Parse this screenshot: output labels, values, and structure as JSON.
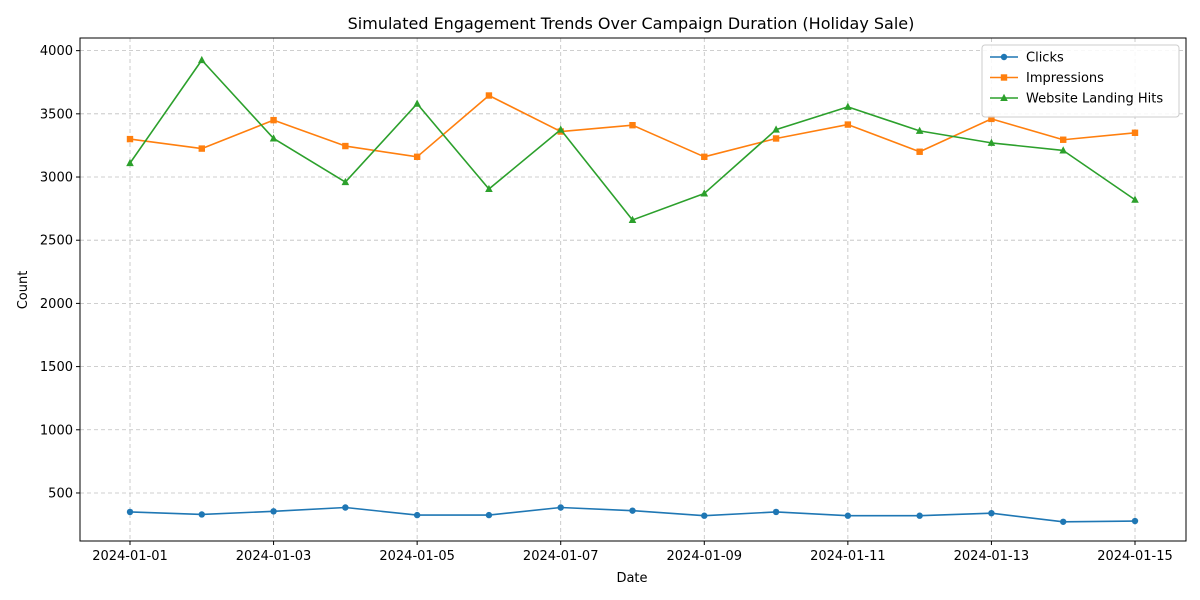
{
  "chart_data": {
    "type": "line",
    "title": "Simulated Engagement Trends Over Campaign Duration (Holiday Sale)",
    "xlabel": "Date",
    "ylabel": "Count",
    "x": [
      "2024-01-01",
      "2024-01-02",
      "2024-01-03",
      "2024-01-04",
      "2024-01-05",
      "2024-01-06",
      "2024-01-07",
      "2024-01-08",
      "2024-01-09",
      "2024-01-10",
      "2024-01-11",
      "2024-01-12",
      "2024-01-13",
      "2024-01-14",
      "2024-01-15"
    ],
    "x_ticks": [
      "2024-01-01",
      "2024-01-03",
      "2024-01-05",
      "2024-01-07",
      "2024-01-09",
      "2024-01-11",
      "2024-01-13",
      "2024-01-15"
    ],
    "y_ticks": [
      500,
      1000,
      1500,
      2000,
      2500,
      3000,
      3500,
      4000
    ],
    "ylim": [
      120,
      4100
    ],
    "grid": true,
    "legend_position": "top-right",
    "series": [
      {
        "name": "Clicks",
        "color": "#1f77b4",
        "marker": "circle",
        "values": [
          350,
          330,
          355,
          385,
          325,
          325,
          385,
          360,
          320,
          350,
          320,
          320,
          340,
          272,
          278
        ]
      },
      {
        "name": "Impressions",
        "color": "#ff7f0e",
        "marker": "square",
        "values": [
          3300,
          3225,
          3450,
          3245,
          3160,
          3645,
          3360,
          3410,
          3160,
          3305,
          3415,
          3200,
          3460,
          3295,
          3350
        ]
      },
      {
        "name": "Website Landing Hits",
        "color": "#2ca02c",
        "marker": "triangle",
        "values": [
          3110,
          3925,
          3305,
          2960,
          3580,
          2905,
          3375,
          2660,
          2870,
          3375,
          3555,
          3365,
          3270,
          3210,
          2820
        ]
      }
    ]
  }
}
